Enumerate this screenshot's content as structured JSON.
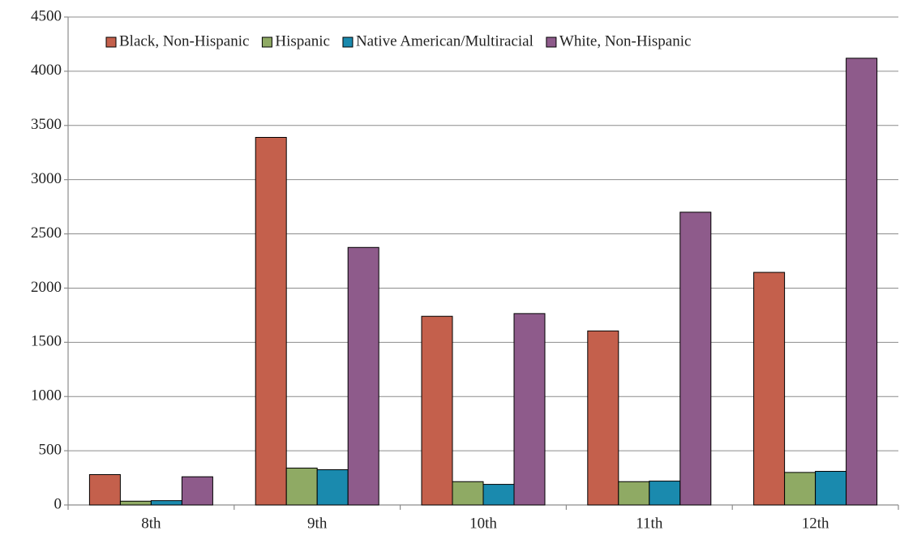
{
  "chart_data": {
    "type": "bar",
    "categories": [
      "8th",
      "9th",
      "10th",
      "11th",
      "12th"
    ],
    "series": [
      {
        "name": "Black, Non-Hispanic",
        "color": "#c4604c",
        "values": [
          280,
          3390,
          1740,
          1605,
          2145
        ]
      },
      {
        "name": "Hispanic",
        "color": "#8faa64",
        "values": [
          35,
          340,
          215,
          215,
          300
        ]
      },
      {
        "name": "Native American/Multiracial",
        "color": "#1a8aae",
        "values": [
          40,
          325,
          190,
          220,
          310
        ]
      },
      {
        "name": "White, Non-Hispanic",
        "color": "#8e5b8b",
        "values": [
          260,
          2375,
          1765,
          2700,
          4120
        ]
      }
    ],
    "ylim": [
      0,
      4500
    ],
    "yticks": [
      0,
      500,
      1000,
      1500,
      2000,
      2500,
      3000,
      3500,
      4000,
      4500
    ],
    "grid": true,
    "legend": "top"
  }
}
